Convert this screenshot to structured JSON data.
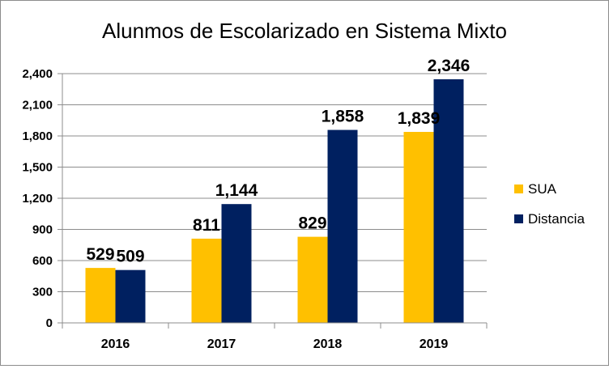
{
  "chart_data": {
    "type": "bar",
    "title": "Alunmos de Escolarizado en Sistema Mixto",
    "xlabel": "",
    "ylabel": "",
    "categories": [
      "2016",
      "2017",
      "2018",
      "2019"
    ],
    "series": [
      {
        "name": "SUA",
        "values": [
          529,
          811,
          829,
          1839
        ],
        "labels": [
          "529",
          "811",
          "829",
          "1,839"
        ],
        "color": "#FFC000"
      },
      {
        "name": "Distancia",
        "values": [
          509,
          1144,
          1858,
          2346
        ],
        "labels": [
          "509",
          "1,144",
          "1,858",
          "2,346"
        ],
        "color": "#002060"
      }
    ],
    "ylim": [
      0,
      2400
    ],
    "y_ticks": [
      0,
      300,
      600,
      900,
      1200,
      1500,
      1800,
      2100,
      2400
    ],
    "y_tick_labels": [
      "0",
      "300",
      "600",
      "900",
      "1,200",
      "1,500",
      "1,800",
      "2,100",
      "2,400"
    ],
    "grid": true,
    "legend_position": "right"
  }
}
